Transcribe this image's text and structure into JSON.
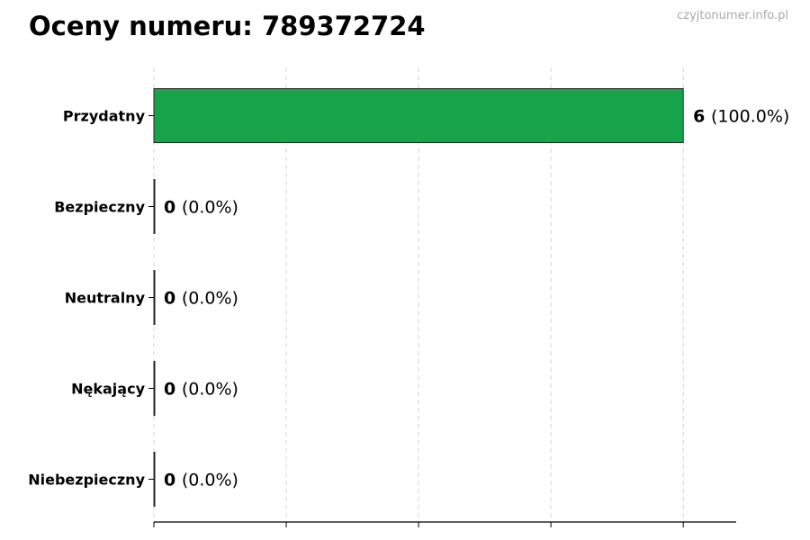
{
  "header": {
    "title": "Oceny numeru: 789372724",
    "watermark": "czyjtonumer.info.pl"
  },
  "chart_data": {
    "type": "bar",
    "orientation": "horizontal",
    "title": "Oceny numeru: 789372724",
    "categories": [
      "Przydatny",
      "Bezpieczny",
      "Neutralny",
      "Nękający",
      "Niebezpieczny"
    ],
    "values": [
      6,
      0,
      0,
      0,
      0
    ],
    "percent_labels": [
      "(100.0%)",
      "(0.0%)",
      "(0.0%)",
      "(0.0%)",
      "(0.0%)"
    ],
    "xlim": [
      0,
      6.6
    ],
    "xticks": [
      0,
      1.5,
      3,
      4.5,
      6
    ],
    "xtick_labels_shown": false,
    "grid": "vertical dashed",
    "bar_color": "#16a34a",
    "bar_edge_color": "#222222"
  }
}
